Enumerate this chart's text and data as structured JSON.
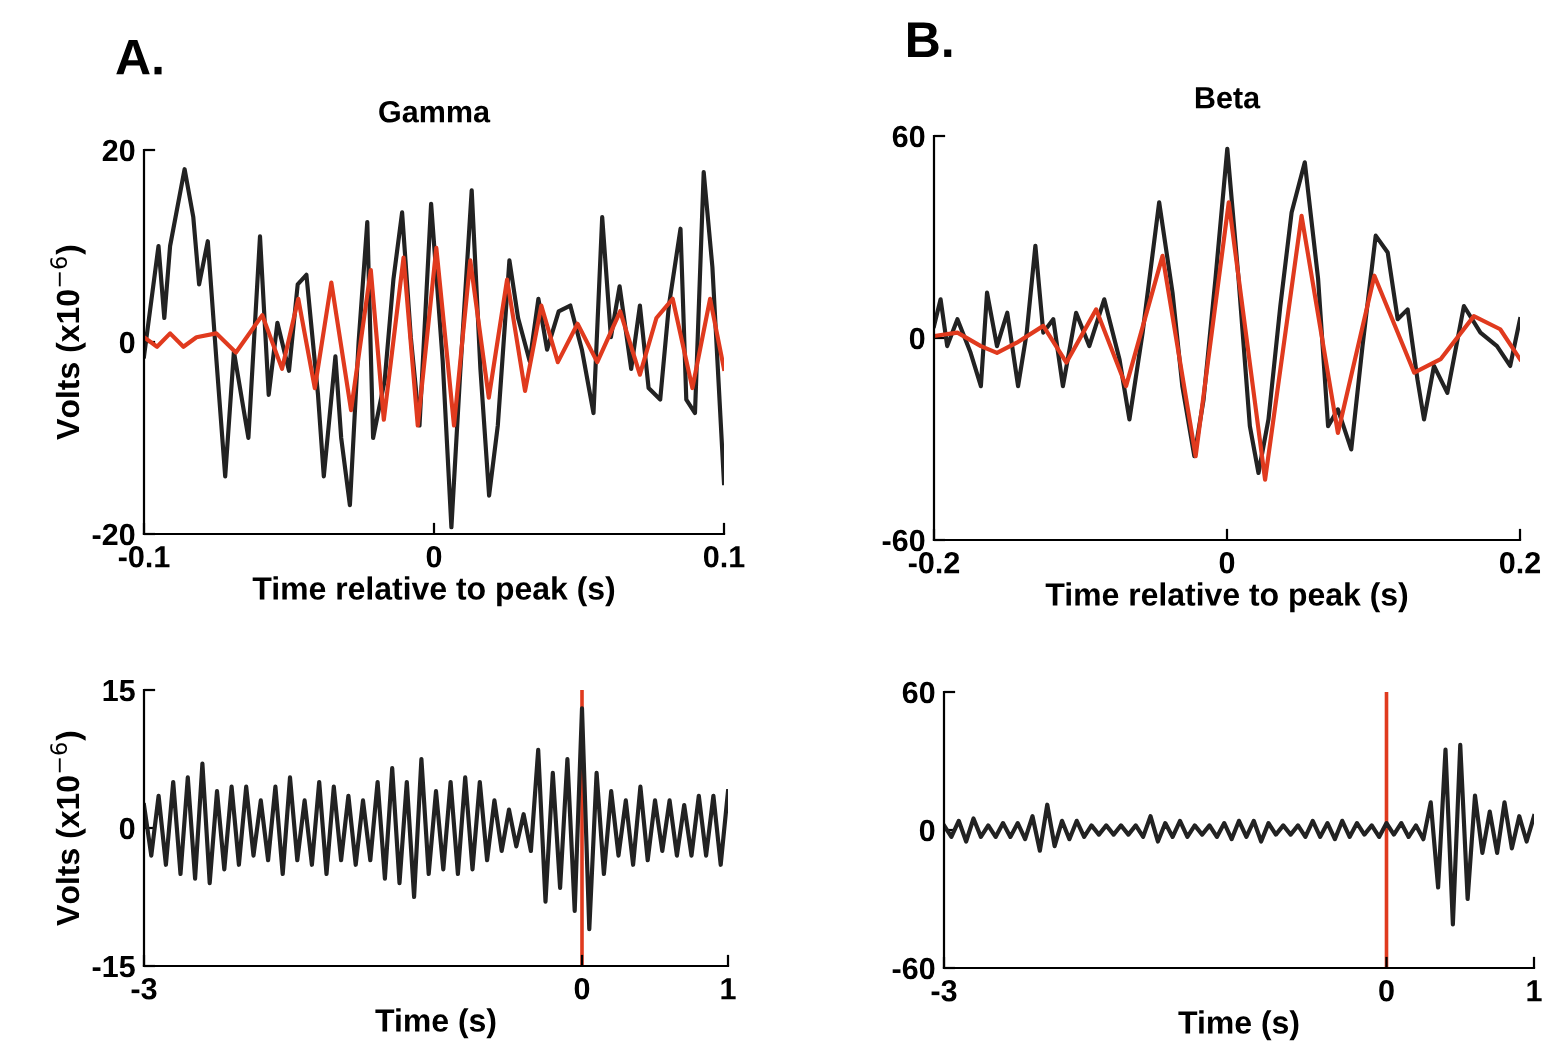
{
  "chart_data": [
    {
      "type": "line",
      "title": "Gamma",
      "annotations": [
        "A."
      ],
      "xlabel": "Time relative to peak (s)",
      "ylabel": "Volts (x10$^{−6}$)",
      "xlim": [
        -0.1,
        0.1
      ],
      "xticks": [
        -0.1,
        0,
        0.1
      ],
      "ylim": [
        -20,
        20
      ],
      "yticks": [
        -20,
        0,
        20
      ],
      "grid": false,
      "series": [
        {
          "color": "#222222",
          "x": [
            -0.1,
            -0.095,
            -0.093,
            -0.091,
            -0.086,
            -0.083,
            -0.081,
            -0.078,
            -0.075,
            -0.072,
            -0.069,
            -0.064,
            -0.06,
            -0.057,
            -0.054,
            -0.05,
            -0.047,
            -0.044,
            -0.04,
            -0.038,
            -0.034,
            -0.032,
            -0.029,
            -0.026,
            -0.023,
            -0.021,
            -0.017,
            -0.014,
            -0.011,
            -0.008,
            -0.005,
            -0.001,
            0.003,
            0.006,
            0.009,
            0.013,
            0.016,
            0.019,
            0.022,
            0.026,
            0.029,
            0.033,
            0.036,
            0.039,
            0.043,
            0.047,
            0.051,
            0.055,
            0.058,
            0.061,
            0.064,
            0.068,
            0.071,
            0.074,
            0.078,
            0.081,
            0.085,
            0.087,
            0.09,
            0.093,
            0.096,
            0.1
          ],
          "values": [
            -1.5,
            10,
            2.5,
            10,
            18,
            13,
            6,
            10.5,
            -2,
            -14,
            -1,
            -10,
            11,
            -5.5,
            2,
            -3,
            6,
            7,
            -5.5,
            -14,
            -1.5,
            -10,
            -17,
            0,
            12.5,
            -10,
            -4,
            6.5,
            13.5,
            0.5,
            -8.7,
            14.4,
            -2,
            -19.3,
            -3.4,
            15.8,
            -2.8,
            -16,
            -8.7,
            8.5,
            2.5,
            -2,
            4.5,
            -0.8,
            3.2,
            3.8,
            -0.8,
            -7.4,
            13,
            0.5,
            5.8,
            -2.8,
            3.8,
            -4.8,
            -6,
            3.8,
            11.8,
            -6,
            -7.4,
            17.7,
            7.8,
            -14.7
          ]
        },
        {
          "color": "#e03a1e",
          "x": [
            -0.1,
            -0.0955,
            -0.091,
            -0.0864,
            -0.0819,
            -0.0751,
            -0.0683,
            -0.0592,
            -0.0524,
            -0.0468,
            -0.0411,
            -0.0354,
            -0.0286,
            -0.0218,
            -0.0173,
            -0.0105,
            -0.0056,
            0.0008,
            0.0069,
            0.0125,
            0.0189,
            0.0252,
            0.0314,
            0.037,
            0.0427,
            0.0495,
            0.0563,
            0.0642,
            0.071,
            0.0767,
            0.0823,
            0.0891,
            0.0952,
            0.1
          ],
          "values": [
            0.5,
            -0.5,
            0.9,
            -0.5,
            0.5,
            0.9,
            -1.1,
            2.8,
            -2.8,
            4.5,
            -4.8,
            6.2,
            -7.1,
            7.5,
            -8.1,
            8.8,
            -8.7,
            9.8,
            -8.7,
            8.5,
            -5.8,
            6.5,
            -5.1,
            3.8,
            -2.1,
            1.9,
            -2.1,
            3.2,
            -3.4,
            2.5,
            4.5,
            -4.8,
            4.5,
            -2.8
          ]
        }
      ]
    },
    {
      "type": "line",
      "title": "Beta",
      "annotations": [
        "B."
      ],
      "xlabel": "Time relative to peak (s)",
      "xlim": [
        -0.2,
        0.2
      ],
      "xticks": [
        -0.2,
        0,
        0.2
      ],
      "ylim": [
        -60,
        60
      ],
      "yticks": [
        -60,
        0,
        60
      ],
      "grid": false,
      "series": [
        {
          "color": "#222222",
          "x": [
            -0.2,
            -0.1955,
            -0.191,
            -0.184,
            -0.175,
            -0.168,
            -0.1638,
            -0.157,
            -0.15,
            -0.1426,
            -0.1367,
            -0.1308,
            -0.1254,
            -0.1186,
            -0.112,
            -0.103,
            -0.094,
            -0.0838,
            -0.0734,
            -0.0666,
            -0.0576,
            -0.0463,
            -0.0372,
            -0.0305,
            -0.0223,
            -0.016,
            -0.0079,
            0.0002,
            0.0079,
            0.0156,
            0.0215,
            0.0283,
            0.0364,
            0.0441,
            0.0531,
            0.0622,
            0.069,
            0.0757,
            0.0848,
            0.0925,
            0.1015,
            0.1097,
            0.1165,
            0.1233,
            0.13,
            0.1345,
            0.1413,
            0.1504,
            0.1617,
            0.173,
            0.1843,
            0.1933,
            0.2
          ],
          "values": [
            3.6,
            11.5,
            -2.4,
            5.6,
            -4.4,
            -14.3,
            13.5,
            -2.4,
            7.5,
            -14.3,
            1.6,
            27.4,
            1.6,
            5.6,
            -14.3,
            7.5,
            -2.4,
            11.5,
            -6.3,
            -24.2,
            1.6,
            40.3,
            13.5,
            -14.3,
            -35.1,
            -18.3,
            17.5,
            56.2,
            17.5,
            -26.2,
            -40.1,
            -24.2,
            9.5,
            37.3,
            52.2,
            17.5,
            -26.2,
            -21.2,
            -33.1,
            -2.4,
            30.4,
            25.4,
            5.6,
            8.5,
            -12.3,
            -24.2,
            -8.3,
            -16.3,
            9.5,
            1.6,
            -2.4,
            -8.3,
            5.6
          ]
        },
        {
          "color": "#e03a1e",
          "x": [
            -0.2,
            -0.184,
            -0.168,
            -0.157,
            -0.1435,
            -0.1254,
            -0.1096,
            -0.0893,
            -0.0689,
            -0.044,
            -0.0214,
            0.0012,
            0.026,
            0.0509,
            0.0757,
            0.1006,
            0.1278,
            0.1458,
            0.1685,
            0.1865,
            0.2
          ],
          "values": [
            0.6,
            1.6,
            -2.4,
            -4.4,
            -1.4,
            3.6,
            -7.3,
            8.5,
            -14.3,
            24.4,
            -35.1,
            40.3,
            -42.1,
            36.3,
            -28.2,
            18.5,
            -10.3,
            -6.3,
            6.5,
            2.6,
            -6.3
          ]
        }
      ]
    },
    {
      "type": "line",
      "xlabel": "Time (s)",
      "ylabel": "Volts (x10$^{−6}$)",
      "xlim": [
        -3,
        1
      ],
      "xticks": [
        -3,
        0,
        1
      ],
      "ylim": [
        -15,
        15
      ],
      "yticks": [
        -15,
        0,
        15
      ],
      "grid": false,
      "ref_lines": [
        {
          "axis": "x",
          "value": 0,
          "color": "#e03a1e"
        }
      ],
      "x": [
        -3,
        -2.95,
        -2.9,
        -2.85,
        -2.8,
        -2.75,
        -2.7,
        -2.65,
        -2.6,
        -2.55,
        -2.5,
        -2.45,
        -2.4,
        -2.35,
        -2.3,
        -2.25,
        -2.2,
        -2.15,
        -2.1,
        -2.05,
        -2,
        -1.95,
        -1.9,
        -1.85,
        -1.8,
        -1.75,
        -1.7,
        -1.65,
        -1.6,
        -1.55,
        -1.5,
        -1.45,
        -1.4,
        -1.35,
        -1.3,
        -1.25,
        -1.2,
        -1.15,
        -1.1,
        -1.05,
        -1,
        -0.95,
        -0.9,
        -0.85,
        -0.8,
        -0.75,
        -0.7,
        -0.65,
        -0.6,
        -0.55,
        -0.5,
        -0.45,
        -0.4,
        -0.35,
        -0.3,
        -0.25,
        -0.2,
        -0.15,
        -0.1,
        -0.05,
        0,
        0.05,
        0.1,
        0.15,
        0.2,
        0.25,
        0.3,
        0.35,
        0.4,
        0.45,
        0.5,
        0.55,
        0.6,
        0.65,
        0.7,
        0.75,
        0.8,
        0.85,
        0.9,
        0.95,
        1
      ],
      "series": [
        {
          "color": "#222222",
          "values": [
            2.5,
            -3,
            3.5,
            -4,
            5,
            -5,
            5.5,
            -5.5,
            7,
            -6,
            4,
            -4.5,
            4.5,
            -4,
            4.5,
            -3,
            3,
            -3.5,
            4.5,
            -5,
            5.5,
            -3.5,
            3,
            -4,
            5,
            -5,
            4.5,
            -3.5,
            3.5,
            -4,
            3,
            -3.5,
            5,
            -5.5,
            6.5,
            -6,
            5,
            -7.5,
            7.5,
            -5,
            4,
            -4.5,
            5,
            -5,
            5.5,
            -4.5,
            5,
            -3.5,
            3,
            -2.5,
            2,
            -2,
            1.5,
            -2.5,
            8.5,
            -8,
            6,
            -6.5,
            7.5,
            -9,
            13,
            -11,
            6,
            -5,
            4,
            -3,
            3,
            -4,
            4.5,
            -3.5,
            3,
            -2.5,
            3,
            -3,
            2.5,
            -3,
            3.5,
            -3,
            3.5,
            -4,
            4
          ]
        }
      ]
    },
    {
      "type": "line",
      "xlabel": "Time (s)",
      "xlim": [
        -3,
        1
      ],
      "xticks": [
        -3,
        0,
        1
      ],
      "ylim": [
        -60,
        60
      ],
      "yticks": [
        -60,
        0,
        60
      ],
      "grid": false,
      "ref_lines": [
        {
          "axis": "x",
          "value": 0,
          "color": "#e03a1e"
        }
      ],
      "x": [
        -3,
        -2.95,
        -2.9,
        -2.85,
        -2.8,
        -2.75,
        -2.7,
        -2.65,
        -2.6,
        -2.55,
        -2.5,
        -2.45,
        -2.4,
        -2.35,
        -2.3,
        -2.25,
        -2.2,
        -2.15,
        -2.1,
        -2.05,
        -2,
        -1.95,
        -1.9,
        -1.85,
        -1.8,
        -1.75,
        -1.7,
        -1.65,
        -1.6,
        -1.55,
        -1.5,
        -1.45,
        -1.4,
        -1.35,
        -1.3,
        -1.25,
        -1.2,
        -1.15,
        -1.1,
        -1.05,
        -1,
        -0.95,
        -0.9,
        -0.85,
        -0.8,
        -0.75,
        -0.7,
        -0.65,
        -0.6,
        -0.55,
        -0.5,
        -0.45,
        -0.4,
        -0.35,
        -0.3,
        -0.25,
        -0.2,
        -0.15,
        -0.1,
        -0.05,
        0,
        0.05,
        0.1,
        0.15,
        0.2,
        0.25,
        0.3,
        0.35,
        0.4,
        0.45,
        0.5,
        0.55,
        0.6,
        0.65,
        0.7,
        0.75,
        0.8,
        0.85,
        0.9,
        0.95,
        1
      ],
      "series": [
        {
          "color": "#222222",
          "values": [
            2,
            -3,
            4,
            -5,
            5,
            -3,
            2,
            -3,
            3,
            -3,
            3,
            -4,
            6,
            -9,
            11,
            -7,
            4,
            -4,
            4,
            -3,
            2,
            -2,
            2,
            -2,
            2,
            -2,
            2,
            -3,
            6,
            -5,
            3,
            -3,
            4,
            -3,
            2,
            -2,
            2,
            -3,
            3,
            -4,
            4,
            -3,
            4,
            -5,
            3,
            -2,
            2,
            -2,
            2,
            -3,
            4,
            -3,
            3,
            -4,
            4,
            -3,
            3,
            -2,
            2,
            -3,
            3,
            -2,
            3,
            -3,
            2,
            -4,
            12,
            -25,
            35,
            -41,
            37,
            -30,
            15,
            -10,
            8,
            -10,
            12,
            -8,
            6,
            -5,
            6
          ]
        }
      ]
    }
  ]
}
